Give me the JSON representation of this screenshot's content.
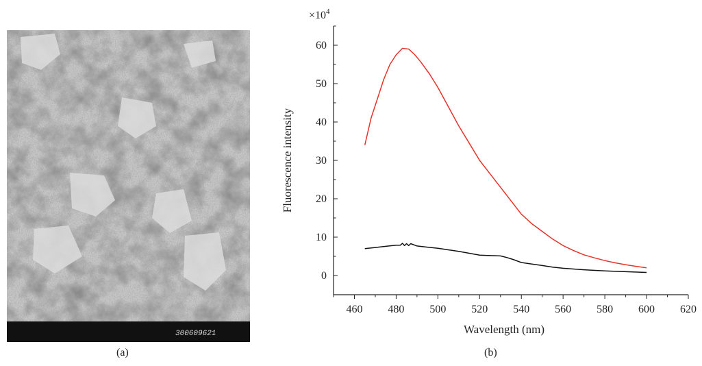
{
  "panel_a": {
    "caption": "(a)",
    "scale_bar_text": "300609621"
  },
  "panel_b": {
    "caption": "(b)"
  },
  "chart_data": {
    "type": "line",
    "xlabel": "Wavelength (nm)",
    "ylabel": "Fluorescence intensity",
    "y_multiplier": "×10",
    "y_multiplier_exp": "4",
    "xlim": [
      450,
      620
    ],
    "ylim": [
      -5,
      65
    ],
    "xticks": [
      460,
      480,
      500,
      520,
      540,
      560,
      580,
      600,
      620
    ],
    "yticks": [
      0,
      10,
      20,
      30,
      40,
      50,
      60
    ],
    "grid": false,
    "series": [
      {
        "color": "#e8312a",
        "x": [
          465,
          468,
          471,
          474,
          477,
          480,
          483,
          486,
          489,
          492,
          496,
          500,
          505,
          510,
          515,
          520,
          525,
          530,
          535,
          540,
          545,
          550,
          555,
          560,
          565,
          570,
          575,
          580,
          585,
          590,
          595,
          600
        ],
        "y": [
          34,
          41,
          46,
          51,
          55,
          57.5,
          59.2,
          59,
          57.5,
          55.5,
          52.5,
          49,
          44,
          39,
          34.5,
          30,
          26.5,
          23,
          19.5,
          16,
          13.5,
          11.5,
          9.5,
          7.8,
          6.5,
          5.4,
          4.6,
          3.9,
          3.3,
          2.8,
          2.4,
          2.0
        ]
      },
      {
        "color": "#111111",
        "x": [
          465,
          470,
          475,
          480,
          482,
          483,
          484,
          485,
          486,
          487,
          490,
          495,
          500,
          505,
          510,
          515,
          520,
          525,
          530,
          533,
          536,
          540,
          545,
          550,
          555,
          560,
          570,
          580,
          590,
          600
        ],
        "y": [
          7.0,
          7.3,
          7.6,
          7.9,
          7.9,
          8.4,
          7.8,
          8.3,
          7.8,
          8.3,
          7.7,
          7.4,
          7.1,
          6.7,
          6.3,
          5.8,
          5.3,
          5.2,
          5.1,
          4.7,
          4.2,
          3.4,
          3.0,
          2.6,
          2.2,
          1.9,
          1.5,
          1.2,
          1.0,
          0.8
        ]
      }
    ]
  }
}
